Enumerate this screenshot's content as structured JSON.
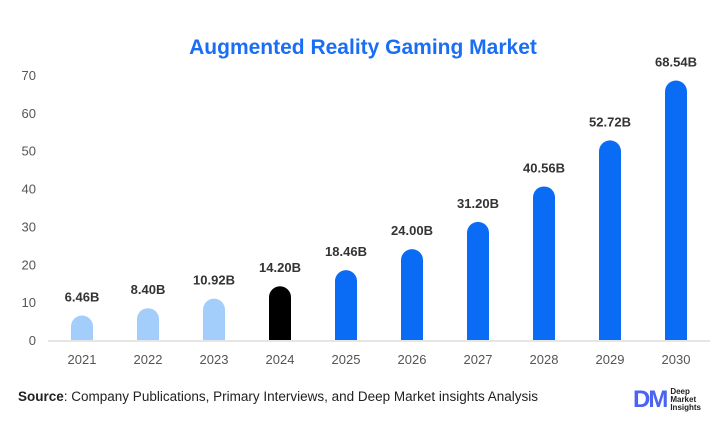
{
  "chart_data": {
    "type": "bar",
    "title": "Augmented Reality Gaming Market",
    "categories": [
      "2021",
      "2022",
      "2023",
      "2024",
      "2025",
      "2026",
      "2027",
      "2028",
      "2029",
      "2030"
    ],
    "values": [
      6.46,
      8.4,
      10.92,
      14.2,
      18.46,
      24.0,
      31.2,
      40.56,
      52.72,
      68.54
    ],
    "data_labels": [
      "6.46B",
      "8.40B",
      "10.92B",
      "14.20B",
      "18.46B",
      "24.00B",
      "31.20B",
      "40.56B",
      "52.72B",
      "68.54B"
    ],
    "bar_colors": [
      "#a3cdfb",
      "#a3cdfb",
      "#a3cdfb",
      "#000000",
      "#0a6cf5",
      "#0a6cf5",
      "#0a6cf5",
      "#0a6cf5",
      "#0a6cf5",
      "#0a6cf5"
    ],
    "ylim": [
      0,
      70
    ],
    "yticks": [
      0,
      10,
      20,
      30,
      40,
      50,
      60,
      70
    ],
    "grid": false,
    "xlabel": "",
    "ylabel": ""
  },
  "source": {
    "label": "Source",
    "text": ": Company Publications, Primary Interviews, and Deep Market insights Analysis"
  },
  "logo": {
    "mark": "DM",
    "lines": [
      "Deep",
      "Market",
      "Insights"
    ]
  }
}
